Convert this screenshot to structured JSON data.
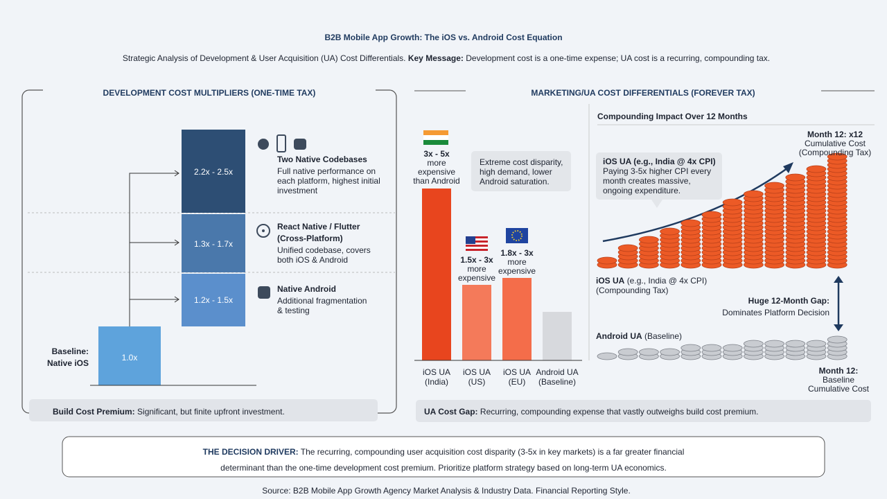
{
  "header": {
    "title": "B2B Mobile App Growth: The iOS vs. Android Cost Equation",
    "subtitle_intro": "Strategic Analysis of Development & User Acquisition (UA) Cost Differentials.",
    "subtitle_key": "Key Message:",
    "subtitle_text": "Development cost is a one-time expense; UA cost is a recurring, compounding tax."
  },
  "left_panel": {
    "title": "DEVELOPMENT COST MULTIPLIERS (ONE-TIME TAX)",
    "baseline": {
      "label_lines": [
        "Baseline:",
        "Native iOS"
      ],
      "multiplier": "1.0x"
    },
    "tiers": [
      {
        "multiplier": "2.2x - 2.5x",
        "title_lines": [
          "Two Native Codebases"
        ],
        "desc_lines": [
          "Full native performance on",
          "each platform, highest initial",
          "investment"
        ]
      },
      {
        "multiplier": "1.3x - 1.7x",
        "title_lines": [
          "React Native / Flutter",
          "(Cross-Platform)"
        ],
        "desc_lines": [
          "Unified codebase, covers",
          "both iOS & Android"
        ]
      },
      {
        "multiplier": "1.2x - 1.5x",
        "title_lines": [
          "Native Android"
        ],
        "desc_lines": [
          "Additional fragmentation",
          "& testing"
        ]
      }
    ],
    "footer": {
      "key": "Build Cost Premium:",
      "text": "Significant, but finite upfront investment."
    }
  },
  "right_panel": {
    "title": "MARKETING/UA COST DIFFERENTIALS (FOREVER TAX)",
    "bars": [
      {
        "label_lines": [
          "iOS UA",
          "(India)"
        ],
        "note_lines": [
          "3x - 5x",
          "more",
          "expensive",
          "than Android"
        ]
      },
      {
        "label_lines": [
          "iOS UA",
          "(US)"
        ],
        "note_lines": [
          "1.5x - 3x",
          "more",
          "expensive"
        ]
      },
      {
        "label_lines": [
          "iOS UA",
          "(EU)"
        ],
        "note_lines": [
          "1.8x - 3x",
          "more",
          "expensive"
        ]
      },
      {
        "label_lines": [
          "Android UA",
          "(Baseline)"
        ],
        "note_lines": []
      }
    ],
    "callout_lines": [
      "Extreme cost disparity,",
      "high demand, lower",
      "Android saturation."
    ],
    "compounding": {
      "title": "Compounding Impact Over 12 Months",
      "ios_callout": [
        "iOS UA (e.g., India @ 4x CPI)",
        "Paying 3-5x higher CPI every",
        "month creates massive,",
        "ongoing expenditure."
      ],
      "month12_ios": [
        "Month 12: x12",
        "Cumulative Cost",
        "(Compounding Tax)"
      ],
      "ios_label": {
        "key": "iOS UA",
        "rest": "(e.g., India @ 4x CPI)",
        "line2": "(Compounding Tax)"
      },
      "gap": [
        "Huge 12-Month Gap:",
        "Dominates Platform Decision"
      ],
      "android_label": {
        "key": "Android UA",
        "rest": "(Baseline)"
      },
      "month12_android": [
        "Month 12:",
        "Baseline",
        "Cumulative Cost"
      ]
    },
    "footer": {
      "key": "UA Cost Gap:",
      "text": "Recurring, compounding expense that vastly outweighs build cost premium."
    }
  },
  "decision": {
    "key": "THE DECISION DRIVER:",
    "line1": "The recurring, compounding user acquisition cost disparity (3-5x in key markets) is a far greater financial",
    "line2": "determinant than the one-time development cost premium. Prioritize platform strategy based on long-term UA economics."
  },
  "source": "Source: B2B Mobile App Growth Agency Market Analysis & Industry Data. Financial Reporting Style."
}
